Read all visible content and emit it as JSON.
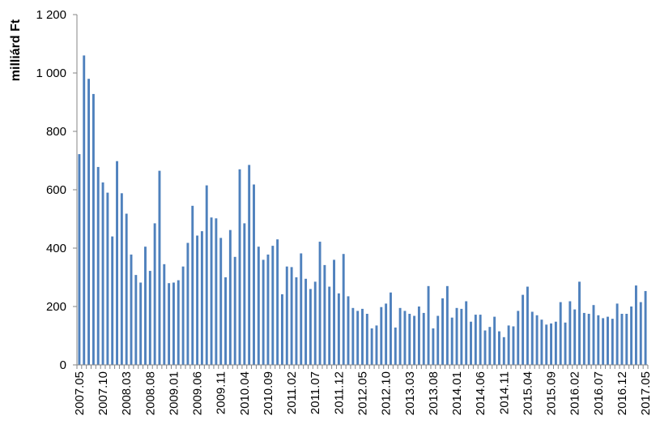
{
  "chart_data": {
    "type": "bar",
    "ylabel": "milliárd Ft",
    "xlabel": "",
    "title": "",
    "ylim": [
      0,
      1200
    ],
    "yticks": [
      0,
      200,
      400,
      600,
      800,
      1000,
      1200
    ],
    "ytick_labels": [
      "0",
      "200",
      "400",
      "600",
      "800",
      "1 000",
      "1 200"
    ],
    "grid": false,
    "bar_color": "#4f81bd",
    "xtick_labels": [
      "2007.05",
      "2007.10",
      "2008.03",
      "2008.08",
      "2009.01",
      "2009.06",
      "2009.11",
      "2010.04",
      "2010.09",
      "2011.02",
      "2011.07",
      "2011.12",
      "2012.05",
      "2012.10",
      "2013.03",
      "2013.08",
      "2014.01",
      "2014.06",
      "2014.11",
      "2015.04",
      "2015.09",
      "2016.02",
      "2016.07",
      "2016.12",
      "2017.05"
    ],
    "categories": [
      "2007.05",
      "2007.06",
      "2007.07",
      "2007.08",
      "2007.09",
      "2007.10",
      "2007.11",
      "2007.12",
      "2008.01",
      "2008.02",
      "2008.03",
      "2008.04",
      "2008.05",
      "2008.06",
      "2008.07",
      "2008.08",
      "2008.09",
      "2008.10",
      "2008.11",
      "2008.12",
      "2009.01",
      "2009.02",
      "2009.03",
      "2009.04",
      "2009.05",
      "2009.06",
      "2009.07",
      "2009.08",
      "2009.09",
      "2009.10",
      "2009.11",
      "2009.12",
      "2010.01",
      "2010.02",
      "2010.03",
      "2010.04",
      "2010.05",
      "2010.06",
      "2010.07",
      "2010.08",
      "2010.09",
      "2010.10",
      "2010.11",
      "2010.12",
      "2011.01",
      "2011.02",
      "2011.03",
      "2011.04",
      "2011.05",
      "2011.06",
      "2011.07",
      "2011.08",
      "2011.09",
      "2011.10",
      "2011.11",
      "2011.12",
      "2012.01",
      "2012.02",
      "2012.03",
      "2012.04",
      "2012.05",
      "2012.06",
      "2012.07",
      "2012.08",
      "2012.09",
      "2012.10",
      "2012.11",
      "2012.12",
      "2013.01",
      "2013.02",
      "2013.03",
      "2013.04",
      "2013.05",
      "2013.06",
      "2013.07",
      "2013.08",
      "2013.09",
      "2013.10",
      "2013.11",
      "2013.12",
      "2014.01",
      "2014.02",
      "2014.03",
      "2014.04",
      "2014.05",
      "2014.06",
      "2014.07",
      "2014.08",
      "2014.09",
      "2014.10",
      "2014.11",
      "2014.12",
      "2015.01",
      "2015.02",
      "2015.03",
      "2015.04",
      "2015.05",
      "2015.06",
      "2015.07",
      "2015.08",
      "2015.09",
      "2015.10",
      "2015.11",
      "2015.12",
      "2016.01",
      "2016.02",
      "2016.03",
      "2016.04",
      "2016.05",
      "2016.06",
      "2016.07",
      "2016.08",
      "2016.09",
      "2016.10",
      "2016.11",
      "2016.12",
      "2017.01",
      "2017.02",
      "2017.03",
      "2017.04",
      "2017.05"
    ],
    "values": [
      722,
      1060,
      980,
      928,
      678,
      625,
      590,
      440,
      698,
      588,
      518,
      378,
      308,
      282,
      405,
      322,
      485,
      665,
      345,
      280,
      282,
      290,
      337,
      418,
      545,
      443,
      458,
      615,
      505,
      502,
      435,
      300,
      462,
      370,
      670,
      485,
      685,
      618,
      405,
      360,
      378,
      408,
      430,
      242,
      337,
      335,
      300,
      382,
      295,
      260,
      285,
      422,
      342,
      268,
      360,
      245,
      380,
      235,
      195,
      185,
      192,
      175,
      125,
      135,
      198,
      210,
      248,
      128,
      195,
      185,
      175,
      168,
      200,
      178,
      270,
      125,
      168,
      228,
      270,
      162,
      195,
      192,
      218,
      148,
      172,
      172,
      118,
      130,
      165,
      115,
      95,
      135,
      132,
      185,
      240,
      268,
      182,
      170,
      155,
      138,
      142,
      148,
      215,
      145,
      218,
      190,
      285,
      178,
      175,
      205,
      170,
      160,
      165,
      158,
      210,
      175,
      175,
      200,
      272,
      215,
      253
    ]
  }
}
